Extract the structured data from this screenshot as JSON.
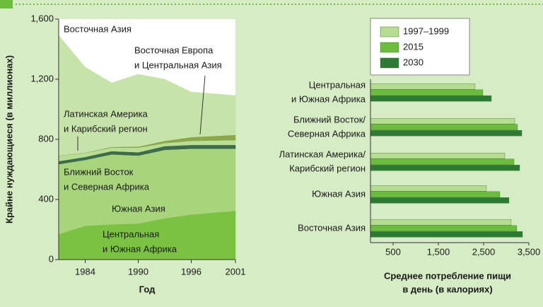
{
  "chart_data": [
    {
      "type": "area",
      "ylabel": "Крайне нуждающиеся (в миллионах)",
      "xlabel": "Год",
      "x": [
        1981,
        1984,
        1987,
        1990,
        1993,
        1996,
        2001
      ],
      "xlim": [
        1981,
        2001
      ],
      "xticks": [
        1984,
        1990,
        1996,
        2001
      ],
      "ylim": [
        0,
        1600
      ],
      "yticks": [
        0,
        400,
        800,
        {
          "value": 1200,
          "label": "1,200"
        },
        {
          "value": 1600,
          "label": "1,600"
        }
      ],
      "series": [
        {
          "name": "Центральная и Южная Африка",
          "color": "#7cc242",
          "values": [
            170,
            225,
            235,
            240,
            275,
            300,
            325
          ]
        },
        {
          "name": "Южная Азия",
          "color": "#a8d57c",
          "values": [
            465,
            438,
            465,
            452,
            455,
            438,
            413
          ]
        },
        {
          "name": "Ближний Восток и Северная Африка",
          "color": "#3d6b4c",
          "values": [
            20,
            20,
            22,
            22,
            25,
            25,
            25
          ]
        },
        {
          "name": "Латинская Америка и Карибский регион",
          "color": "#b8dd94",
          "values": [
            35,
            27,
            23,
            31,
            20,
            27,
            32
          ]
        },
        {
          "name": "Восточная Европа и Центральная Азия",
          "color": "#8aa84a",
          "values": [
            2,
            2,
            5,
            7,
            15,
            25,
            35
          ]
        },
        {
          "name": "Восточная Азия",
          "color": "#c6e4aa",
          "values": [
            800,
            568,
            426,
            481,
            410,
            300,
            262
          ]
        }
      ],
      "annotations": [
        [
          "Восточная Азия"
        ],
        [
          "Восточная Европа",
          "и Центральная Азия"
        ],
        [
          "Латинская Америка",
          "и Карибский регион"
        ],
        [
          "Ближний Восток",
          "и Северная Африка"
        ],
        [
          "Южная Азия"
        ],
        [
          "Центральная",
          "и Южная Африка"
        ]
      ]
    },
    {
      "type": "barh",
      "xlabel": [
        "Среднее потребление пищи",
        "в день (в калориях)"
      ],
      "categories": [
        [
          "Центральная",
          "и Южная Африка"
        ],
        [
          "Ближний Восток/",
          "Северная Африка"
        ],
        [
          "Латинская Америка/",
          "Карибский регион"
        ],
        [
          "Южная Азия"
        ],
        [
          "Восточная Азия"
        ]
      ],
      "xlim": [
        0,
        3500
      ],
      "xticks": [
        500,
        {
          "value": 1500,
          "label": "1,500"
        },
        {
          "value": 2500,
          "label": "2,500"
        },
        {
          "value": 3500,
          "label": "3,500"
        }
      ],
      "series": [
        {
          "name": "1997–1999",
          "color": "#b5dc8f",
          "values": [
            2312,
            3188,
            2969,
            2562,
            3109
          ]
        },
        {
          "name": "2015",
          "color": "#6cbd3b",
          "values": [
            2484,
            3250,
            3172,
            2859,
            3234
          ]
        },
        {
          "name": "2030",
          "color": "#2c7a34",
          "values": [
            2672,
            3344,
            3297,
            3062,
            3359
          ]
        }
      ]
    }
  ]
}
